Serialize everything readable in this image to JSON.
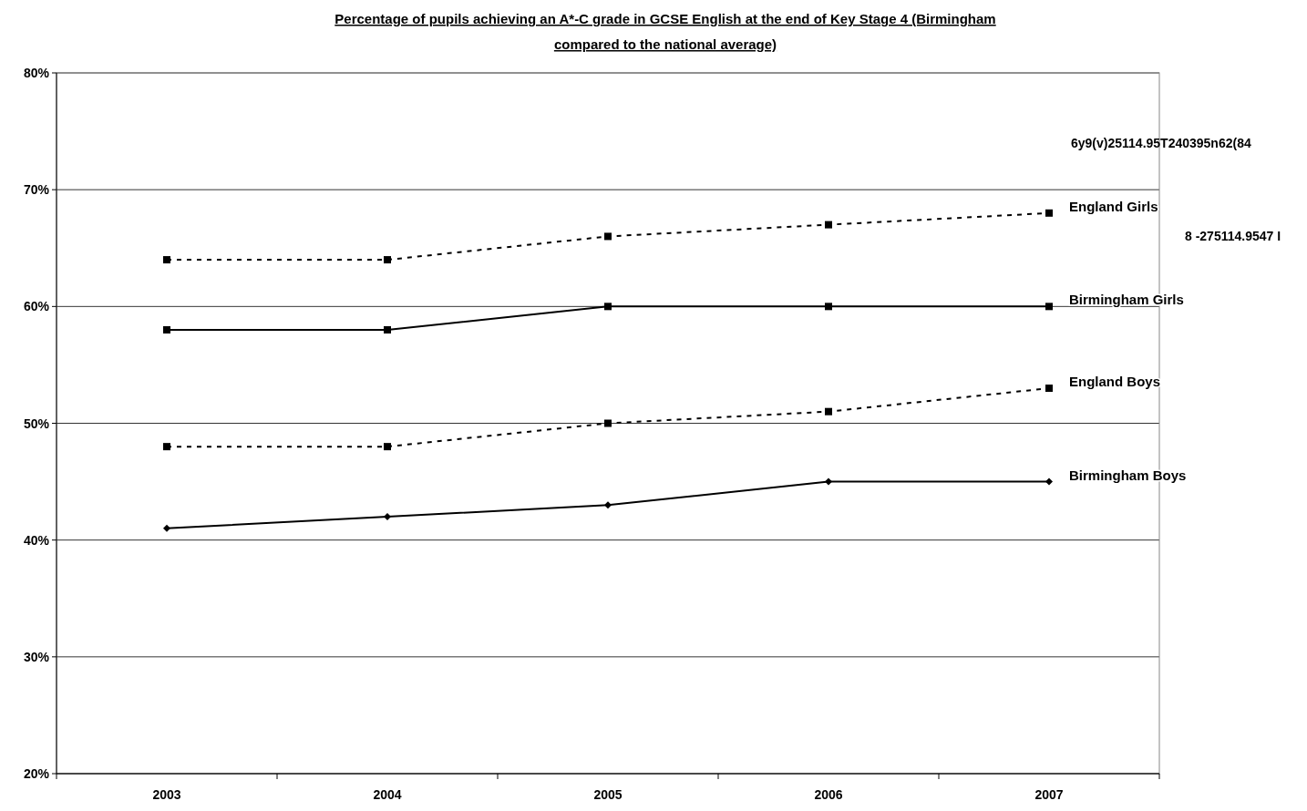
{
  "chart_data": {
    "type": "line",
    "title": "Percentage of pupils achieving an A*-C grade in GCSE English at the end of Key Stage 4 (Birmingham compared to the national average)",
    "categories": [
      "2003",
      "2004",
      "2005",
      "2006",
      "2007"
    ],
    "series": [
      {
        "name": "England Girls",
        "color": "#000000",
        "values": [
          64,
          64,
          66,
          67,
          68
        ],
        "line_style": "dashed",
        "marker": "square"
      },
      {
        "name": "Birmingham Girls",
        "color": "#000000",
        "values": [
          58,
          58,
          60,
          60,
          60
        ],
        "line_style": "solid",
        "marker": "square"
      },
      {
        "name": "England Boys",
        "color": "#000000",
        "values": [
          48,
          48,
          50,
          51,
          53
        ],
        "line_style": "dashed",
        "marker": "square"
      },
      {
        "name": "Birmingham Boys",
        "color": "#000000",
        "values": [
          41,
          42,
          43,
          45,
          45
        ],
        "line_style": "solid",
        "marker": "diamond"
      }
    ],
    "annotations": [
      "6y9(v)25114.95T240395n62(84",
      "8 -275114.9547 I"
    ],
    "ylim": [
      20,
      80
    ],
    "yticks": [
      {
        "value": 20,
        "label": "20%"
      },
      {
        "value": 30,
        "label": "30%"
      },
      {
        "value": 40,
        "label": "40%"
      },
      {
        "value": 50,
        "label": "50%"
      },
      {
        "value": 60,
        "label": "60%"
      },
      {
        "value": 70,
        "label": "70%"
      },
      {
        "value": 80,
        "label": "80%"
      }
    ],
    "grid": "y",
    "legend": false
  }
}
